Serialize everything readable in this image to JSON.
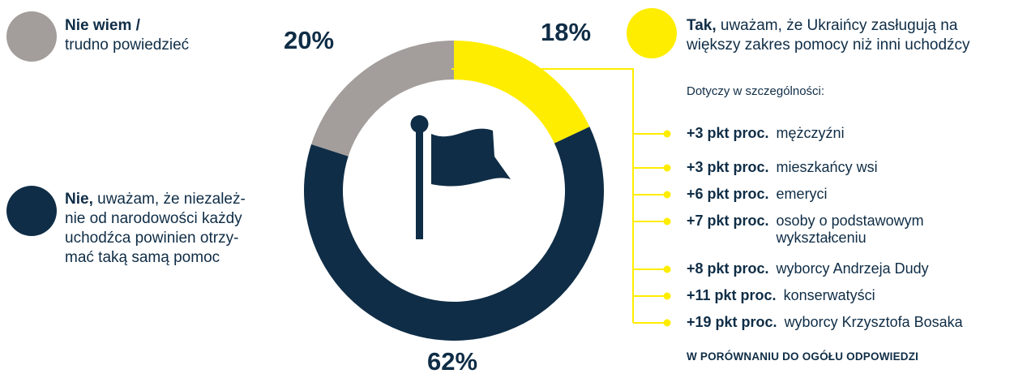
{
  "colors": {
    "navy": "#0f2d46",
    "gray": "#a39e9b",
    "yellow": "#ffed00"
  },
  "icon": "flag-icon",
  "legend": {
    "dont_know": {
      "bold": "Nie wiem /",
      "rest": "trudno powiedzieć"
    },
    "no": {
      "bold": "Nie,",
      "line1": " uważam, że niezależ-",
      "line2": "nie od narodowości każdy",
      "line3": "uchodźca powinien otrzy-",
      "line4": "mać taką samą pomoc"
    },
    "yes": {
      "bold": "Tak,",
      "line1": " uważam, że Ukraińcy zasługują na",
      "line2": "większy zakres pomocy niż inni uchodźcy"
    }
  },
  "chart_data": {
    "type": "pie",
    "donut": true,
    "slices": [
      {
        "key": "yes",
        "value": 18,
        "label": "18%",
        "color": "#ffed00"
      },
      {
        "key": "no",
        "value": 62,
        "label": "62%",
        "color": "#0f2d46"
      },
      {
        "key": "dont_know",
        "value": 20,
        "label": "20%",
        "color": "#a39e9b"
      }
    ],
    "breakdown_title": "Dotyczy w szczególności:",
    "breakdown": [
      {
        "value": "+3 pkt proc.",
        "group": "mężczyźni"
      },
      {
        "value": "+3 pkt proc.",
        "group": "mieszkańcy wsi"
      },
      {
        "value": "+6 pkt proc.",
        "group": "emeryci"
      },
      {
        "value": "+7 pkt proc.",
        "group": "osoby o podstawowym",
        "group2": "wykształceniu"
      },
      {
        "value": "+8 pkt proc.",
        "group": "wyborcy Andrzeja Dudy"
      },
      {
        "value": "+11 pkt proc.",
        "group": "konserwatyści"
      },
      {
        "value": "+19 pkt proc.",
        "group": "wyborcy Krzysztofa Bosaka"
      }
    ],
    "footnote": "W PORÓWNANIU DO OGÓŁU ODPOWIEDZI"
  }
}
